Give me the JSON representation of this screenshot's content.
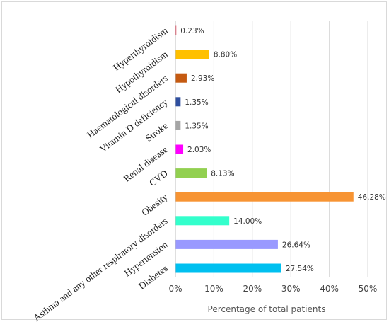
{
  "chart_data": {
    "type": "bar",
    "orientation": "horizontal",
    "categories": [
      "Hyperthyroidism",
      "Hypothyroidism",
      "Haematological disorders",
      "Vitamin D deficiency",
      "Stroke",
      "Renal disease",
      "CVD",
      "Obesity",
      "Asthma and any other respiratory disorders",
      "Hypertension",
      "Diabetes"
    ],
    "values": [
      0.23,
      8.8,
      2.93,
      1.35,
      1.35,
      2.03,
      8.13,
      46.28,
      14.0,
      26.64,
      27.54
    ],
    "value_labels": [
      "0.23%",
      "8.80%",
      "2.93%",
      "1.35%",
      "1.35%",
      "2.03%",
      "8.13%",
      "46.28%",
      "14.00%",
      "26.64%",
      "27.54%"
    ],
    "colors": [
      "#e84a5f",
      "#ffc000",
      "#c55a11",
      "#2f4f9f",
      "#a5a5a5",
      "#ff00ff",
      "#92d050",
      "#f79433",
      "#33ffcc",
      "#9999ff",
      "#00c0f0"
    ],
    "xlim": [
      0,
      50
    ],
    "x_ticks": [
      "0%",
      "10%",
      "20%",
      "30%",
      "40%",
      "50%"
    ],
    "xlabel": "Percentage of total patients",
    "ylabel": "",
    "title": "",
    "grid": "vertical",
    "legend": "none"
  }
}
